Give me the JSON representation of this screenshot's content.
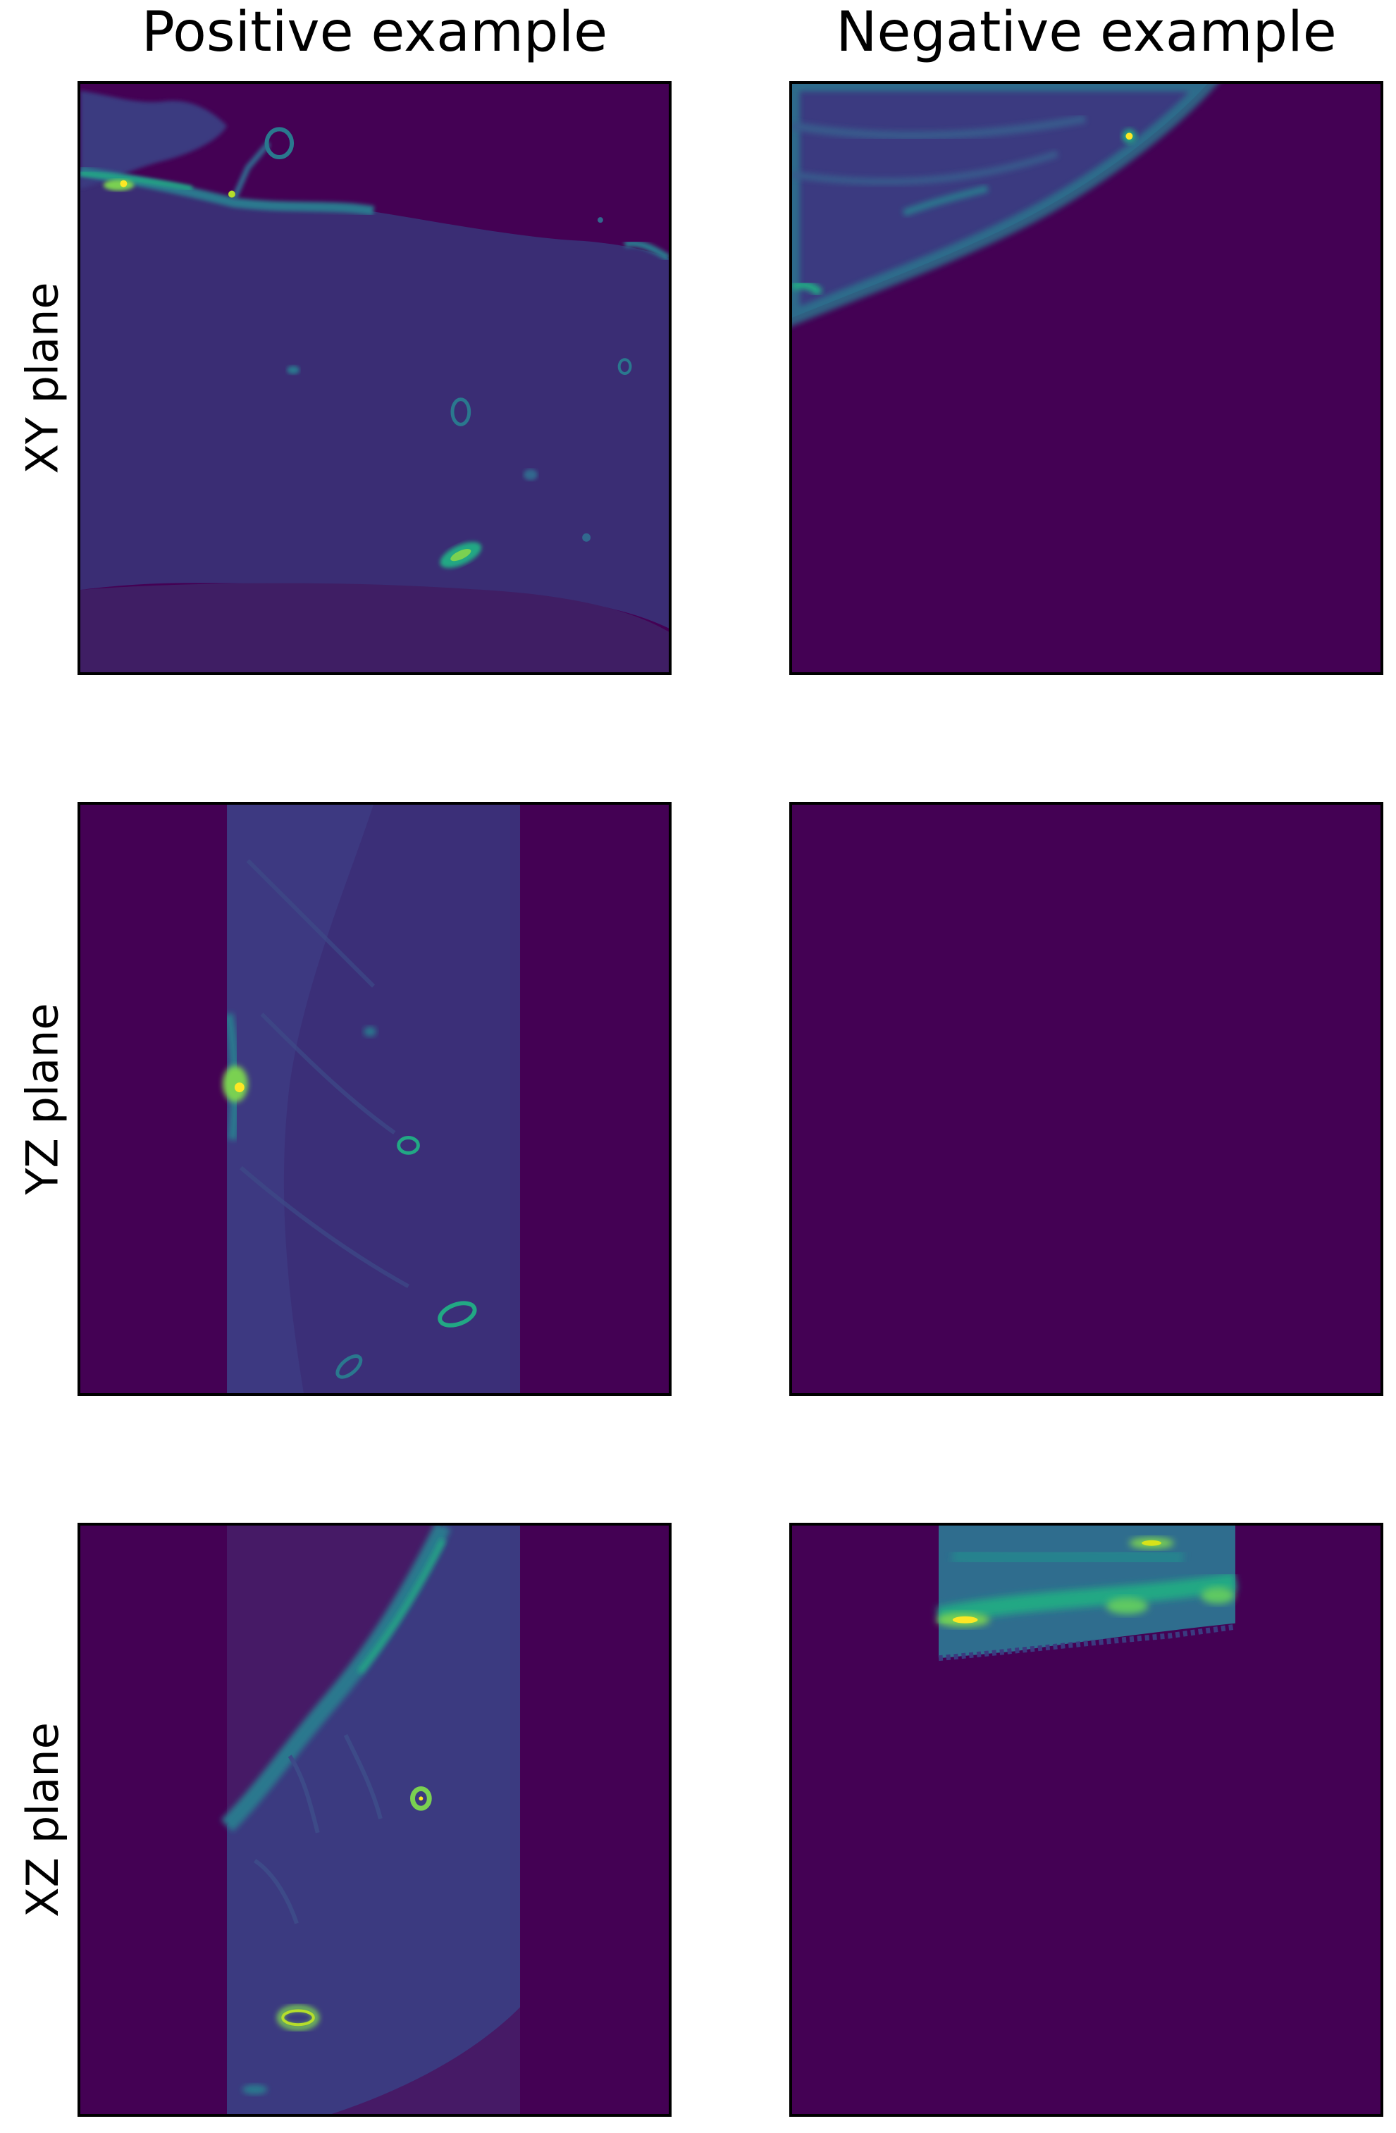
{
  "columns": [
    "Positive example",
    "Negative example"
  ],
  "rows": [
    "XY plane",
    "YZ plane",
    "XZ plane"
  ],
  "colormap": {
    "background": "#440154",
    "tissue": "#3b2f78",
    "tissue_light": "#414487",
    "mid": "#2a788e",
    "high": "#22a884",
    "bright": "#7ad151",
    "peak": "#fde725"
  }
}
